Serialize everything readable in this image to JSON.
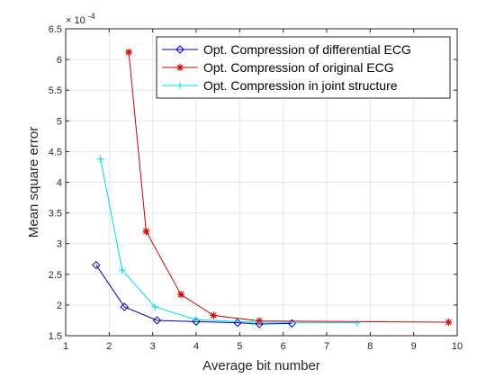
{
  "chart_data": {
    "type": "line",
    "xlabel": "Average bit number",
    "ylabel": "Mean square error",
    "xlim": [
      1,
      10
    ],
    "ylim": [
      1.5,
      6.5
    ],
    "x_ticks": [
      "1",
      "2",
      "3",
      "4",
      "5",
      "6",
      "7",
      "8",
      "9",
      "10"
    ],
    "y_ticks": [
      "1.5",
      "2",
      "2.5",
      "3",
      "3.5",
      "4",
      "4.5",
      "5",
      "5.5",
      "6",
      "6.5"
    ],
    "y_exponent_base": "× 10",
    "y_exponent_power": "-4",
    "grid": true,
    "legend_position": "top-right",
    "series": [
      {
        "name": "Opt. Compression of differential ECG",
        "color": "#0000ad",
        "marker": "diamond",
        "x": [
          1.7,
          2.35,
          3.1,
          4.0,
          4.95,
          5.45,
          6.2
        ],
        "y": [
          2.65,
          1.97,
          1.75,
          1.73,
          1.71,
          1.69,
          1.7
        ]
      },
      {
        "name": "Opt. Compression of original ECG",
        "color": "#cc0000",
        "marker": "asterisk",
        "x": [
          2.45,
          2.85,
          3.65,
          4.4,
          5.45,
          9.8
        ],
        "y": [
          6.12,
          3.2,
          2.17,
          1.83,
          1.74,
          1.72
        ]
      },
      {
        "name": "Opt. Compression in joint structure",
        "color": "#00d9e6",
        "marker": "plus",
        "x": [
          1.8,
          2.3,
          3.05,
          4.0,
          5.3,
          7.7
        ],
        "y": [
          4.38,
          2.57,
          1.97,
          1.76,
          1.72,
          1.71
        ]
      }
    ]
  }
}
